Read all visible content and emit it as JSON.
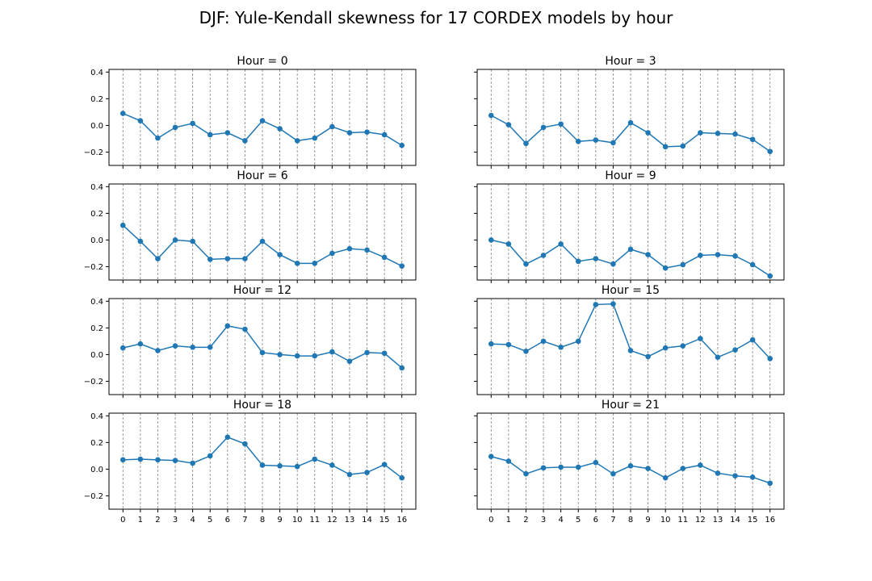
{
  "figure": {
    "title": "DJF: Yule-Kendall skewness for 17 CORDEX models by hour"
  },
  "style": {
    "line_color": "#1f77b4",
    "grid_color": "#808080",
    "axis_color": "#000000"
  },
  "chart_data": [
    {
      "type": "line",
      "title": "Hour = 0",
      "x": [
        0,
        1,
        2,
        3,
        4,
        5,
        6,
        7,
        8,
        9,
        10,
        11,
        12,
        13,
        14,
        15,
        16
      ],
      "series": [
        {
          "values": [
            0.09,
            0.035,
            -0.095,
            -0.015,
            0.015,
            -0.07,
            -0.055,
            -0.115,
            0.035,
            -0.025,
            -0.115,
            -0.095,
            -0.01,
            -0.055,
            -0.05,
            -0.07,
            -0.15
          ]
        }
      ],
      "xlim": [
        -0.8,
        16.8
      ],
      "ylim": [
        -0.3,
        0.42
      ],
      "yticks": [
        -0.2,
        0.0,
        0.2,
        0.4
      ],
      "ytick_labels": [
        "−0.2",
        "0.0",
        "0.2",
        "0.4"
      ],
      "xticks": [
        0,
        1,
        2,
        3,
        4,
        5,
        6,
        7,
        8,
        9,
        10,
        11,
        12,
        13,
        14,
        15,
        16
      ],
      "xgrid": "dashed",
      "show_yticklabels": true,
      "show_xticklabels": false
    },
    {
      "type": "line",
      "title": "Hour = 3",
      "x": [
        0,
        1,
        2,
        3,
        4,
        5,
        6,
        7,
        8,
        9,
        10,
        11,
        12,
        13,
        14,
        15,
        16
      ],
      "series": [
        {
          "values": [
            0.075,
            0.005,
            -0.135,
            -0.015,
            0.01,
            -0.12,
            -0.11,
            -0.13,
            0.02,
            -0.055,
            -0.16,
            -0.155,
            -0.055,
            -0.06,
            -0.065,
            -0.105,
            -0.195
          ]
        }
      ],
      "xlim": [
        -0.8,
        16.8
      ],
      "ylim": [
        -0.3,
        0.42
      ],
      "yticks": [
        -0.2,
        0.0,
        0.2,
        0.4
      ],
      "ytick_labels": [
        "−0.2",
        "0.0",
        "0.2",
        "0.4"
      ],
      "xticks": [
        0,
        1,
        2,
        3,
        4,
        5,
        6,
        7,
        8,
        9,
        10,
        11,
        12,
        13,
        14,
        15,
        16
      ],
      "xgrid": "dashed",
      "show_yticklabels": false,
      "show_xticklabels": false
    },
    {
      "type": "line",
      "title": "Hour = 6",
      "x": [
        0,
        1,
        2,
        3,
        4,
        5,
        6,
        7,
        8,
        9,
        10,
        11,
        12,
        13,
        14,
        15,
        16
      ],
      "series": [
        {
          "values": [
            0.11,
            -0.01,
            -0.14,
            0.0,
            -0.01,
            -0.145,
            -0.14,
            -0.14,
            -0.01,
            -0.11,
            -0.175,
            -0.175,
            -0.1,
            -0.065,
            -0.075,
            -0.13,
            -0.195
          ]
        }
      ],
      "xlim": [
        -0.8,
        16.8
      ],
      "ylim": [
        -0.3,
        0.42
      ],
      "yticks": [
        -0.2,
        0.0,
        0.2,
        0.4
      ],
      "ytick_labels": [
        "−0.2",
        "0.0",
        "0.2",
        "0.4"
      ],
      "xticks": [
        0,
        1,
        2,
        3,
        4,
        5,
        6,
        7,
        8,
        9,
        10,
        11,
        12,
        13,
        14,
        15,
        16
      ],
      "xgrid": "dashed",
      "show_yticklabels": true,
      "show_xticklabels": false
    },
    {
      "type": "line",
      "title": "Hour = 9",
      "x": [
        0,
        1,
        2,
        3,
        4,
        5,
        6,
        7,
        8,
        9,
        10,
        11,
        12,
        13,
        14,
        15,
        16
      ],
      "series": [
        {
          "values": [
            0.0,
            -0.03,
            -0.18,
            -0.115,
            -0.03,
            -0.16,
            -0.14,
            -0.18,
            -0.07,
            -0.11,
            -0.21,
            -0.185,
            -0.115,
            -0.11,
            -0.12,
            -0.185,
            -0.27
          ]
        }
      ],
      "xlim": [
        -0.8,
        16.8
      ],
      "ylim": [
        -0.3,
        0.42
      ],
      "yticks": [
        -0.2,
        0.0,
        0.2,
        0.4
      ],
      "ytick_labels": [
        "−0.2",
        "0.0",
        "0.2",
        "0.4"
      ],
      "xticks": [
        0,
        1,
        2,
        3,
        4,
        5,
        6,
        7,
        8,
        9,
        10,
        11,
        12,
        13,
        14,
        15,
        16
      ],
      "xgrid": "dashed",
      "show_yticklabels": false,
      "show_xticklabels": false
    },
    {
      "type": "line",
      "title": "Hour = 12",
      "x": [
        0,
        1,
        2,
        3,
        4,
        5,
        6,
        7,
        8,
        9,
        10,
        11,
        12,
        13,
        14,
        15,
        16
      ],
      "series": [
        {
          "values": [
            0.05,
            0.08,
            0.03,
            0.065,
            0.055,
            0.055,
            0.215,
            0.19,
            0.015,
            0.0,
            -0.01,
            -0.01,
            0.02,
            -0.05,
            0.015,
            0.01,
            -0.1
          ]
        }
      ],
      "xlim": [
        -0.8,
        16.8
      ],
      "ylim": [
        -0.3,
        0.42
      ],
      "yticks": [
        -0.2,
        0.0,
        0.2,
        0.4
      ],
      "ytick_labels": [
        "−0.2",
        "0.0",
        "0.2",
        "0.4"
      ],
      "xticks": [
        0,
        1,
        2,
        3,
        4,
        5,
        6,
        7,
        8,
        9,
        10,
        11,
        12,
        13,
        14,
        15,
        16
      ],
      "xgrid": "dashed",
      "show_yticklabels": true,
      "show_xticklabels": false
    },
    {
      "type": "line",
      "title": "Hour = 15",
      "x": [
        0,
        1,
        2,
        3,
        4,
        5,
        6,
        7,
        8,
        9,
        10,
        11,
        12,
        13,
        14,
        15,
        16
      ],
      "series": [
        {
          "values": [
            0.08,
            0.075,
            0.025,
            0.1,
            0.055,
            0.1,
            0.375,
            0.38,
            0.03,
            -0.015,
            0.05,
            0.065,
            0.12,
            -0.02,
            0.035,
            0.11,
            -0.03
          ]
        }
      ],
      "xlim": [
        -0.8,
        16.8
      ],
      "ylim": [
        -0.3,
        0.42
      ],
      "yticks": [
        -0.2,
        0.0,
        0.2,
        0.4
      ],
      "ytick_labels": [
        "−0.2",
        "0.0",
        "0.2",
        "0.4"
      ],
      "xticks": [
        0,
        1,
        2,
        3,
        4,
        5,
        6,
        7,
        8,
        9,
        10,
        11,
        12,
        13,
        14,
        15,
        16
      ],
      "xgrid": "dashed",
      "show_yticklabels": false,
      "show_xticklabels": false
    },
    {
      "type": "line",
      "title": "Hour = 18",
      "x": [
        0,
        1,
        2,
        3,
        4,
        5,
        6,
        7,
        8,
        9,
        10,
        11,
        12,
        13,
        14,
        15,
        16
      ],
      "series": [
        {
          "values": [
            0.07,
            0.075,
            0.07,
            0.065,
            0.045,
            0.1,
            0.24,
            0.19,
            0.03,
            0.025,
            0.02,
            0.075,
            0.03,
            -0.04,
            -0.025,
            0.035,
            -0.065
          ]
        }
      ],
      "xlim": [
        -0.8,
        16.8
      ],
      "ylim": [
        -0.3,
        0.42
      ],
      "yticks": [
        -0.2,
        0.0,
        0.2,
        0.4
      ],
      "ytick_labels": [
        "−0.2",
        "0.0",
        "0.2",
        "0.4"
      ],
      "xticks": [
        0,
        1,
        2,
        3,
        4,
        5,
        6,
        7,
        8,
        9,
        10,
        11,
        12,
        13,
        14,
        15,
        16
      ],
      "xgrid": "dashed",
      "show_yticklabels": true,
      "show_xticklabels": true
    },
    {
      "type": "line",
      "title": "Hour = 21",
      "x": [
        0,
        1,
        2,
        3,
        4,
        5,
        6,
        7,
        8,
        9,
        10,
        11,
        12,
        13,
        14,
        15,
        16
      ],
      "series": [
        {
          "values": [
            0.095,
            0.06,
            -0.035,
            0.01,
            0.015,
            0.015,
            0.05,
            -0.035,
            0.025,
            0.005,
            -0.065,
            0.005,
            0.03,
            -0.03,
            -0.05,
            -0.06,
            -0.105
          ]
        }
      ],
      "xlim": [
        -0.8,
        16.8
      ],
      "ylim": [
        -0.3,
        0.42
      ],
      "yticks": [
        -0.2,
        0.0,
        0.2,
        0.4
      ],
      "ytick_labels": [
        "−0.2",
        "0.0",
        "0.2",
        "0.4"
      ],
      "xticks": [
        0,
        1,
        2,
        3,
        4,
        5,
        6,
        7,
        8,
        9,
        10,
        11,
        12,
        13,
        14,
        15,
        16
      ],
      "xgrid": "dashed",
      "show_yticklabels": false,
      "show_xticklabels": true
    }
  ]
}
